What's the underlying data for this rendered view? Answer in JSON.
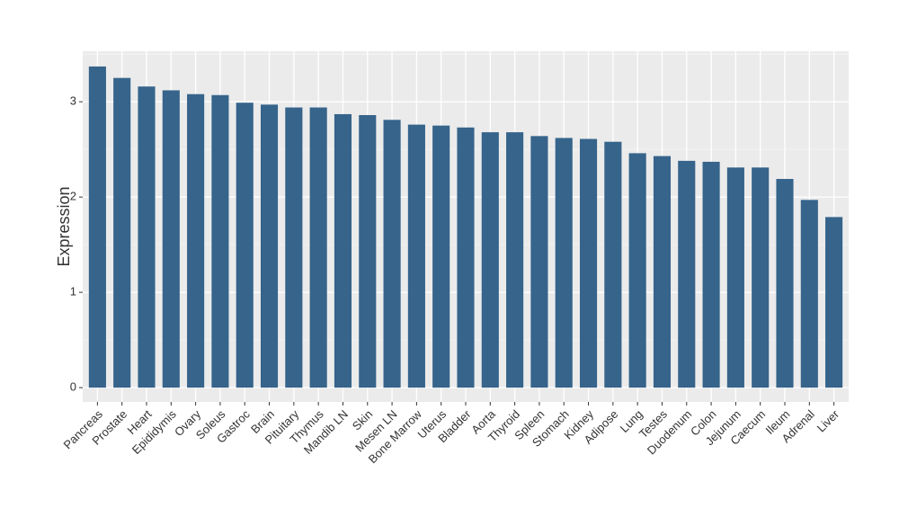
{
  "chart_data": {
    "type": "bar",
    "y_label": "Expression",
    "categories": [
      "Pancreas",
      "Prostate",
      "Heart",
      "Epididymis",
      "Ovary",
      "Soleus",
      "Gastroc",
      "Brain",
      "Pituitary",
      "Thymus",
      "Mandib LN",
      "Skin",
      "Mesen LN",
      "Bone Marrow",
      "Uterus",
      "Bladder",
      "Aorta",
      "Thyroid",
      "Spleen",
      "Stomach",
      "Kidney",
      "Adipose",
      "Lung",
      "Testes",
      "Duodenum",
      "Colon",
      "Jejunum",
      "Caecum",
      "Ileum",
      "Adrenal",
      "Liver"
    ],
    "values": [
      3.37,
      3.25,
      3.16,
      3.12,
      3.08,
      3.07,
      2.99,
      2.97,
      2.94,
      2.94,
      2.87,
      2.86,
      2.81,
      2.76,
      2.75,
      2.73,
      2.68,
      2.68,
      2.64,
      2.62,
      2.61,
      2.58,
      2.46,
      2.43,
      2.38,
      2.37,
      2.31,
      2.31,
      2.19,
      1.97,
      1.79
    ],
    "color": "#36648b",
    "ylim": [
      -0.15,
      3.53
    ],
    "yticks": [
      0,
      1,
      2,
      3
    ],
    "grid": true
  }
}
